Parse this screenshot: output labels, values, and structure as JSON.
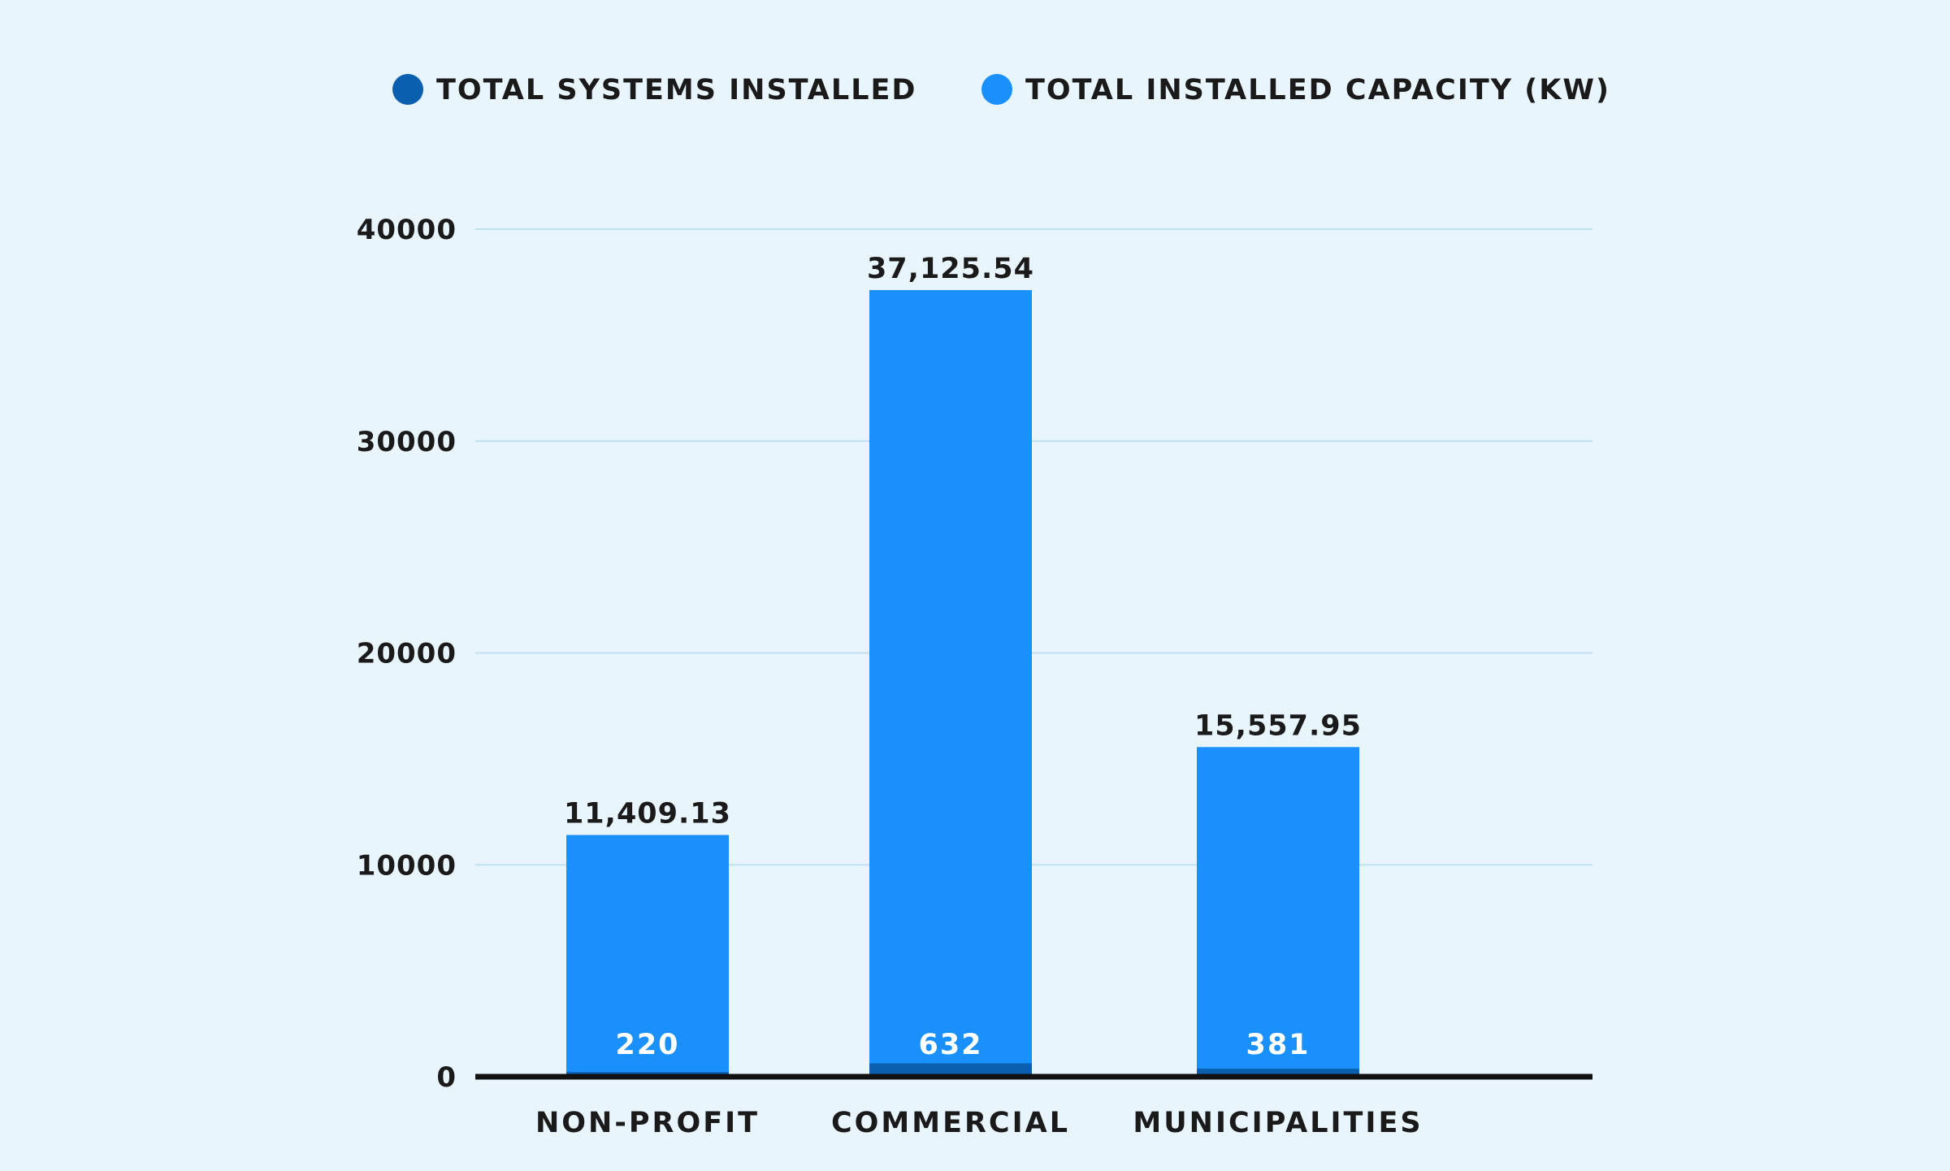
{
  "chart_data": {
    "type": "bar",
    "categories": [
      "NON-PROFIT",
      "COMMERCIAL",
      "MUNICIPALITIES"
    ],
    "series": [
      {
        "name": "TOTAL SYSTEMS INSTALLED",
        "values": [
          220,
          632,
          381
        ],
        "labels": [
          "220",
          "632",
          "381"
        ],
        "color": "#0a5fae"
      },
      {
        "name": "TOTAL INSTALLED CAPACITY (KW)",
        "values": [
          11409.13,
          37125.54,
          15557.95
        ],
        "labels": [
          "11,409.13",
          "37,125.54",
          "15,557.95"
        ],
        "color": "#1990fb"
      }
    ],
    "yticks": [
      0,
      10000,
      20000,
      30000,
      40000
    ],
    "ytick_labels": [
      "0",
      "10000",
      "20000",
      "30000",
      "40000"
    ],
    "ylim": [
      0,
      40000
    ],
    "grid": true,
    "legend_position": "top",
    "colors": {
      "grid": "#bfe0f2",
      "baseline": "#111111",
      "background": "#e9f5fd"
    }
  }
}
